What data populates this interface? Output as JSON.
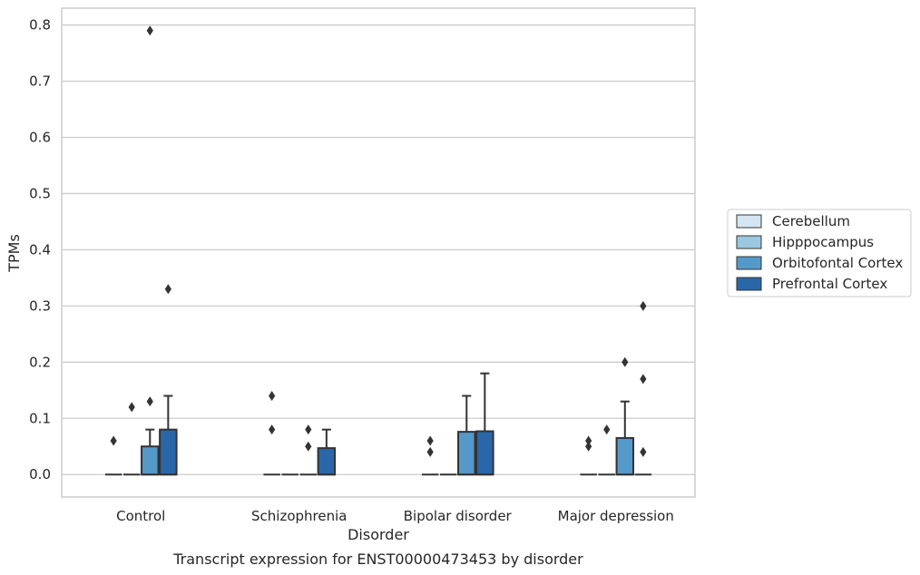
{
  "chart_data": {
    "type": "box",
    "title": "",
    "caption": "Transcript expression for ENST00000473453 by disorder",
    "xlabel": "Disorder",
    "ylabel": "TPMs",
    "ylim": [
      -0.04,
      0.83
    ],
    "yticks": [
      0.0,
      0.1,
      0.2,
      0.3,
      0.4,
      0.5,
      0.6,
      0.7,
      0.8
    ],
    "ytick_labels": [
      "0.0",
      "0.1",
      "0.2",
      "0.3",
      "0.4",
      "0.5",
      "0.6",
      "0.7",
      "0.8"
    ],
    "grid": "horizontal",
    "legend_position": "right",
    "categories": [
      "Control",
      "Schizophrenia",
      "Bipolar disorder",
      "Major depression"
    ],
    "series": [
      {
        "name": "Cerebellum",
        "color": "#d5e5f3",
        "boxes": [
          {
            "q1": 0.0,
            "median": 0.0,
            "q3": 0.0,
            "whisker_low": 0.0,
            "whisker_high": 0.0,
            "outliers": [
              0.06
            ]
          },
          {
            "q1": 0.0,
            "median": 0.0,
            "q3": 0.0,
            "whisker_low": 0.0,
            "whisker_high": 0.0,
            "outliers": [
              0.14,
              0.08
            ]
          },
          {
            "q1": 0.0,
            "median": 0.0,
            "q3": 0.0,
            "whisker_low": 0.0,
            "whisker_high": 0.0,
            "outliers": [
              0.06,
              0.04
            ]
          },
          {
            "q1": 0.0,
            "median": 0.0,
            "q3": 0.0,
            "whisker_low": 0.0,
            "whisker_high": 0.0,
            "outliers": [
              0.06,
              0.05
            ]
          }
        ]
      },
      {
        "name": "Hipppocampus",
        "color": "#9ac8e0",
        "boxes": [
          {
            "q1": 0.0,
            "median": 0.0,
            "q3": 0.0,
            "whisker_low": 0.0,
            "whisker_high": 0.0,
            "outliers": [
              0.12
            ]
          },
          {
            "q1": 0.0,
            "median": 0.0,
            "q3": 0.0,
            "whisker_low": 0.0,
            "whisker_high": 0.0,
            "outliers": []
          },
          {
            "q1": 0.0,
            "median": 0.0,
            "q3": 0.0,
            "whisker_low": 0.0,
            "whisker_high": 0.0,
            "outliers": []
          },
          {
            "q1": 0.0,
            "median": 0.0,
            "q3": 0.0,
            "whisker_low": 0.0,
            "whisker_high": 0.0,
            "outliers": [
              0.08
            ]
          }
        ]
      },
      {
        "name": "Orbitofontal Cortex",
        "color": "#5599c8",
        "boxes": [
          {
            "q1": 0.0,
            "median": 0.0,
            "q3": 0.05,
            "whisker_low": 0.0,
            "whisker_high": 0.08,
            "outliers": [
              0.13,
              0.79
            ]
          },
          {
            "q1": 0.0,
            "median": 0.0,
            "q3": 0.0,
            "whisker_low": 0.0,
            "whisker_high": 0.0,
            "outliers": [
              0.05,
              0.08
            ]
          },
          {
            "q1": 0.0,
            "median": 0.0,
            "q3": 0.076,
            "whisker_low": 0.0,
            "whisker_high": 0.14,
            "outliers": []
          },
          {
            "q1": 0.0,
            "median": 0.0,
            "q3": 0.065,
            "whisker_low": 0.0,
            "whisker_high": 0.13,
            "outliers": [
              0.2
            ]
          }
        ]
      },
      {
        "name": "Prefrontal Cortex",
        "color": "#2a67a8",
        "boxes": [
          {
            "q1": 0.0,
            "median": 0.0,
            "q3": 0.08,
            "whisker_low": 0.0,
            "whisker_high": 0.14,
            "outliers": [
              0.33
            ]
          },
          {
            "q1": 0.0,
            "median": 0.0,
            "q3": 0.047,
            "whisker_low": 0.0,
            "whisker_high": 0.08,
            "outliers": []
          },
          {
            "q1": 0.0,
            "median": 0.0,
            "q3": 0.077,
            "whisker_low": 0.0,
            "whisker_high": 0.18,
            "outliers": []
          },
          {
            "q1": 0.0,
            "median": 0.0,
            "q3": 0.0,
            "whisker_low": 0.0,
            "whisker_high": 0.0,
            "outliers": [
              0.3,
              0.17,
              0.04
            ]
          }
        ]
      }
    ]
  }
}
